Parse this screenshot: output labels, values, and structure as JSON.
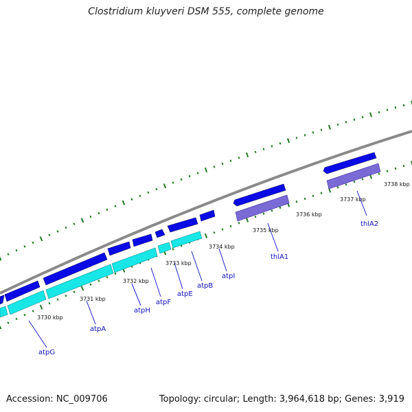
{
  "title": "Clostridium kluyveri DSM 555, complete genome",
  "accession_text": "Accession: NC_009706",
  "topology_text": "Topology: circular; Length: 3,964,618 bp; Genes: 3,919",
  "colors": {
    "backbone": "#8a8a8a",
    "ticks": "#1f7a1f",
    "gene_forward": "#0a0ae6",
    "gene_atp": "#19e6e6",
    "gene_thla": "#7a6ad6",
    "label": "#1010c0",
    "leader": "#2020d0"
  },
  "coordinates": [
    "3730 kbp",
    "3731 kbp",
    "3732 kbp",
    "3733 kbp",
    "3734 kbp",
    "3735 kbp",
    "3736 kbp",
    "3737 kbp",
    "3738 kbp"
  ],
  "genes": [
    "atpG",
    "atpA",
    "atpH",
    "atpF",
    "atpE",
    "atpB",
    "atpI",
    "thlA1",
    "thlA2"
  ]
}
